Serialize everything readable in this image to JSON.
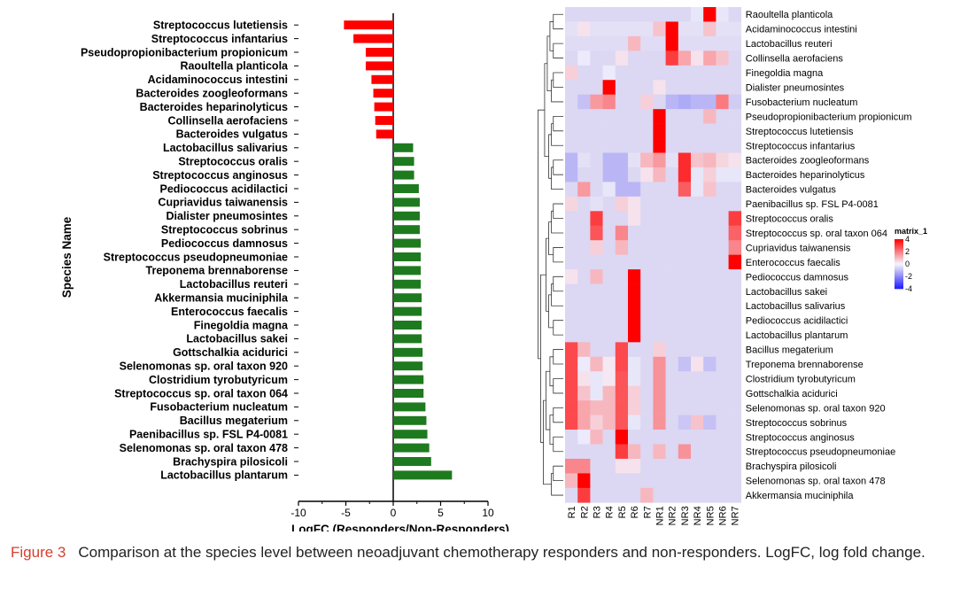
{
  "caption": {
    "label": "Figure 3",
    "text": "Comparison at the species level between neoadjuvant chemotherapy responders and non-responders. LogFC, log fold change."
  },
  "colors": {
    "negative_bar": "#ff0000",
    "positive_bar": "#1e7a1e",
    "heat_low": "#1a1aff",
    "heat_mid": "#f4f4ff",
    "heat_high": "#ff0000",
    "heat_base": "#dcd7f3",
    "caption_label": "#d6402f"
  },
  "chart_data": [
    {
      "type": "bar",
      "orientation": "horizontal",
      "xlabel": "LogFC (Responders/Non-Responders)",
      "ylabel": "Species Name",
      "xlim": [
        -10,
        10
      ],
      "xticks": [
        -10,
        -5,
        0,
        5,
        10
      ],
      "categories": [
        "Streptococcus lutetiensis",
        "Streptococcus infantarius",
        "Pseudopropionibacterium propionicum",
        "Raoultella planticola",
        "Acidaminococcus intestini",
        "Bacteroides zoogleoformans",
        "Bacteroides heparinolyticus",
        "Collinsella aerofaciens",
        "Bacteroides vulgatus",
        "Lactobacillus salivarius",
        "Streptococcus oralis",
        "Streptococcus anginosus",
        "Pediococcus acidilactici",
        "Cupriavidus taiwanensis",
        "Dialister pneumosintes",
        "Streptococcus sobrinus",
        "Pediococcus damnosus",
        "Streptococcus pseudopneumoniae",
        "Treponema brennaborense",
        "Lactobacillus reuteri",
        "Akkermansia muciniphila",
        "Enterococcus faecalis",
        "Finegoldia magna",
        "Lactobacillus sakei",
        "Gottschalkia acidurici",
        "Selenomonas sp. oral taxon 920",
        "Clostridium tyrobutyricum",
        "Streptococcus sp. oral taxon 064",
        "Fusobacterium nucleatum",
        "Bacillus megaterium",
        "Paenibacillus sp. FSL P4-0081",
        "Selenomonas sp. oral taxon 478",
        "Brachyspira pilosicoli",
        "Lactobacillus plantarum"
      ],
      "values": [
        -5.2,
        -4.2,
        -2.9,
        -2.9,
        -2.3,
        -2.1,
        -2.0,
        -1.9,
        -1.8,
        2.1,
        2.2,
        2.2,
        2.7,
        2.8,
        2.8,
        2.8,
        2.9,
        2.9,
        2.9,
        2.9,
        3.0,
        3.0,
        3.0,
        3.0,
        3.1,
        3.1,
        3.2,
        3.2,
        3.4,
        3.5,
        3.6,
        3.8,
        4.0,
        6.2
      ]
    },
    {
      "type": "heatmap",
      "legend": {
        "title": "matrix_1",
        "ticks": [
          4,
          2,
          0,
          -2,
          -4
        ],
        "range": [
          -4,
          4
        ],
        "placement": "right"
      },
      "columns": [
        "R1",
        "R2",
        "R3",
        "R4",
        "R5",
        "R6",
        "R7",
        "NR1",
        "NR2",
        "NR3",
        "NR4",
        "NR5",
        "NR6",
        "NR7"
      ],
      "rows": [
        "Raoultella planticola",
        "Acidaminococcus intestini",
        "Lactobacillus reuteri",
        "Collinsella aerofaciens",
        "Finegoldia magna",
        "Dialister pneumosintes",
        "Fusobacterium nucleatum",
        "Pseudopropionibacterium propionicum",
        "Streptococcus lutetiensis",
        "Streptococcus infantarius",
        "Bacteroides zoogleoformans",
        "Bacteroides heparinolyticus",
        "Bacteroides vulgatus",
        "Paenibacillus sp. FSL P4-0081",
        "Streptococcus oralis",
        "Streptococcus sp. oral taxon 064",
        "Cupriavidus taiwanensis",
        "Enterococcus faecalis",
        "Pediococcus damnosus",
        "Lactobacillus sakei",
        "Lactobacillus salivarius",
        "Pediococcus acidilactici",
        "Lactobacillus plantarum",
        "Bacillus megaterium",
        "Treponema brennaborense",
        "Clostridium tyrobutyricum",
        "Gottschalkia acidurici",
        "Selenomonas sp. oral taxon 920",
        "Streptococcus sobrinus",
        "Streptococcus anginosus",
        "Streptococcus pseudopneumoniae",
        "Brachyspira pilosicoli",
        "Selenomonas sp. oral taxon 478",
        "Akkermansia muciniphila"
      ],
      "values": [
        [
          -0.6,
          -0.6,
          -0.6,
          -0.6,
          -0.6,
          -0.6,
          -0.6,
          -0.6,
          -0.6,
          -0.6,
          -0.3,
          4.0,
          -0.3,
          -0.6
        ],
        [
          -0.4,
          0.3,
          -0.4,
          -0.4,
          -0.4,
          -0.4,
          -0.4,
          0.8,
          4.0,
          -0.4,
          -0.4,
          0.8,
          -0.4,
          -0.4
        ],
        [
          -0.5,
          -0.5,
          -0.5,
          -0.5,
          -0.5,
          1.0,
          -0.5,
          -0.5,
          4.0,
          -0.5,
          -0.5,
          -0.5,
          -0.5,
          -0.5
        ],
        [
          -0.6,
          -0.2,
          -0.6,
          -0.6,
          0.3,
          -0.6,
          -0.6,
          -0.6,
          3.0,
          1.3,
          0.3,
          1.3,
          0.8,
          -0.6
        ],
        [
          0.6,
          -0.6,
          -0.6,
          -0.2,
          -0.6,
          -0.6,
          -0.6,
          -0.6,
          -0.6,
          -0.6,
          -0.6,
          -0.6,
          -0.6,
          -0.6
        ],
        [
          -0.6,
          -0.6,
          -0.6,
          4.0,
          -0.6,
          -0.6,
          -0.6,
          0.3,
          -0.6,
          -0.6,
          -0.6,
          -0.6,
          -0.6,
          -0.6
        ],
        [
          -0.6,
          -1.0,
          1.5,
          1.8,
          -0.6,
          -0.6,
          0.6,
          -0.6,
          -1.2,
          -1.4,
          -1.2,
          -1.2,
          2.0,
          -0.8
        ],
        [
          -0.6,
          -0.6,
          -0.6,
          -0.6,
          -0.6,
          -0.6,
          -0.6,
          4.0,
          -0.6,
          -0.6,
          -0.6,
          1.0,
          -0.6,
          -0.6
        ],
        [
          -0.6,
          -0.6,
          -0.6,
          -0.6,
          -0.6,
          -0.6,
          -0.6,
          4.0,
          -0.6,
          -0.6,
          -0.6,
          -0.6,
          -0.6,
          -0.6
        ],
        [
          -0.6,
          -0.6,
          -0.6,
          -0.6,
          -0.6,
          -0.6,
          -0.6,
          4.0,
          -0.6,
          -0.6,
          -0.6,
          -0.6,
          -0.6,
          -0.6
        ],
        [
          -1.2,
          -0.4,
          -0.6,
          -1.2,
          -1.2,
          -0.4,
          1.0,
          1.5,
          -0.4,
          3.3,
          0.8,
          1.0,
          0.5,
          0.3
        ],
        [
          -1.2,
          -0.6,
          -0.6,
          -1.2,
          -1.2,
          -0.6,
          0.3,
          1.0,
          -0.6,
          3.3,
          -0.3,
          0.6,
          -0.3,
          -0.3
        ],
        [
          -0.6,
          1.5,
          -0.6,
          -0.3,
          -1.2,
          -1.2,
          -0.6,
          -0.6,
          -0.6,
          2.5,
          -0.3,
          0.8,
          -0.6,
          -0.6
        ],
        [
          0.5,
          -0.6,
          -0.4,
          -0.6,
          0.6,
          0.3,
          -0.6,
          -0.6,
          -0.6,
          -0.6,
          -0.6,
          -0.6,
          -0.6,
          -0.6
        ],
        [
          -0.6,
          -0.6,
          3.0,
          -0.6,
          -0.6,
          0.3,
          -0.6,
          -0.6,
          -0.6,
          -0.6,
          -0.6,
          -0.6,
          -0.6,
          3.0
        ],
        [
          -0.6,
          -0.6,
          2.6,
          -0.6,
          1.8,
          -0.6,
          -0.6,
          -0.6,
          -0.6,
          -0.6,
          -0.6,
          -0.6,
          -0.6,
          2.4
        ],
        [
          -0.6,
          -0.6,
          0.6,
          -0.6,
          1.0,
          -0.6,
          -0.6,
          -0.6,
          -0.6,
          -0.6,
          -0.6,
          -0.6,
          -0.6,
          1.8
        ],
        [
          -0.6,
          -0.6,
          -0.6,
          -0.6,
          -0.6,
          -0.6,
          -0.6,
          -0.6,
          -0.6,
          -0.6,
          -0.6,
          -0.6,
          -0.6,
          4.0
        ],
        [
          0.3,
          -0.6,
          1.0,
          -0.6,
          -0.6,
          4.0,
          -0.6,
          -0.6,
          -0.6,
          -0.6,
          -0.6,
          -0.6,
          -0.6,
          -0.6
        ],
        [
          -0.6,
          -0.6,
          -0.6,
          -0.6,
          -0.6,
          4.0,
          -0.6,
          -0.6,
          -0.6,
          -0.6,
          -0.6,
          -0.6,
          -0.6,
          -0.6
        ],
        [
          -0.6,
          -0.6,
          -0.6,
          -0.6,
          -0.6,
          4.0,
          -0.6,
          -0.6,
          -0.6,
          -0.6,
          -0.6,
          -0.6,
          -0.6,
          -0.6
        ],
        [
          -0.6,
          -0.6,
          -0.6,
          -0.6,
          -0.6,
          4.0,
          -0.6,
          -0.6,
          -0.6,
          -0.6,
          -0.6,
          -0.6,
          -0.6,
          -0.6
        ],
        [
          -0.6,
          -0.6,
          -0.6,
          -0.6,
          -0.6,
          4.0,
          -0.6,
          -0.6,
          -0.6,
          -0.6,
          -0.6,
          -0.6,
          -0.6,
          -0.6
        ],
        [
          2.8,
          1.0,
          -0.6,
          -0.6,
          2.8,
          -0.6,
          -0.6,
          0.6,
          -0.6,
          -0.6,
          -0.6,
          -0.6,
          -0.6,
          -0.6
        ],
        [
          2.8,
          -0.2,
          1.0,
          0.2,
          2.8,
          -0.3,
          -0.6,
          1.6,
          -0.6,
          -1.0,
          0.3,
          -1.0,
          -0.6,
          -0.6
        ],
        [
          2.8,
          0.3,
          -0.3,
          0.2,
          2.6,
          -0.3,
          -0.6,
          1.6,
          -0.6,
          -0.6,
          -0.6,
          -0.6,
          -0.6,
          -0.6
        ],
        [
          2.8,
          0.8,
          -0.3,
          1.0,
          2.6,
          0.6,
          -0.6,
          1.6,
          -0.6,
          -0.6,
          -0.6,
          -0.6,
          -0.6,
          -0.6
        ],
        [
          2.8,
          1.3,
          1.0,
          1.0,
          2.6,
          0.6,
          -0.6,
          1.6,
          -0.6,
          -0.6,
          -0.6,
          -0.6,
          -0.6,
          -0.6
        ],
        [
          2.8,
          1.3,
          0.6,
          1.0,
          2.6,
          -0.3,
          -0.6,
          1.6,
          -0.6,
          -0.9,
          0.8,
          -1.0,
          -0.6,
          -0.6
        ],
        [
          -0.6,
          -0.2,
          1.0,
          -0.6,
          4.0,
          -0.6,
          -0.6,
          -0.6,
          -0.6,
          -0.6,
          -0.6,
          -0.6,
          -0.6,
          -0.6
        ],
        [
          -0.6,
          -0.6,
          -0.6,
          -0.6,
          3.0,
          1.0,
          -0.6,
          1.0,
          -0.6,
          1.6,
          -0.6,
          -0.6,
          -0.6,
          -0.6
        ],
        [
          1.8,
          1.8,
          -0.6,
          -0.6,
          0.3,
          0.3,
          -0.6,
          -0.6,
          -0.6,
          -0.6,
          -0.6,
          -0.6,
          -0.6,
          -0.6
        ],
        [
          1.0,
          4.0,
          -0.6,
          -0.6,
          -0.6,
          -0.6,
          -0.6,
          -0.6,
          -0.6,
          -0.6,
          -0.6,
          -0.6,
          -0.6,
          -0.6
        ],
        [
          -0.6,
          3.0,
          -0.6,
          -0.6,
          -0.6,
          -0.6,
          1.0,
          -0.6,
          -0.6,
          -0.6,
          -0.6,
          -0.6,
          -0.6,
          -0.6
        ]
      ]
    }
  ]
}
